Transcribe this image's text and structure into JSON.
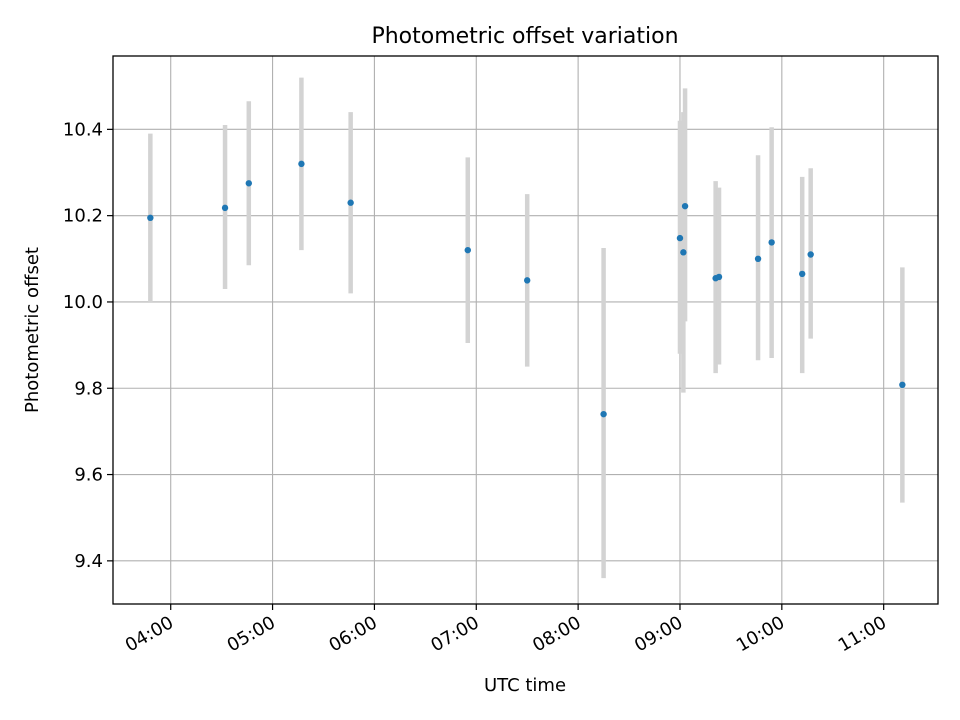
{
  "chart_data": {
    "type": "scatter",
    "title": "Photometric offset variation",
    "xlabel": "UTC time",
    "ylabel": "Photometric offset",
    "x_axis_type": "time",
    "xlim": [
      "03:26",
      "11:32"
    ],
    "ylim": [
      9.3,
      10.57
    ],
    "grid": true,
    "x_tick_labels": [
      "04:00",
      "05:00",
      "06:00",
      "07:00",
      "08:00",
      "09:00",
      "10:00",
      "11:00"
    ],
    "y_tick_labels": [
      "9.4",
      "9.6",
      "9.8",
      "10.0",
      "10.2",
      "10.4"
    ],
    "errorbar_color": "#d3d3d3",
    "point_color": "#1f77b4",
    "points": [
      {
        "x": "03:48",
        "y": 10.195,
        "ylow": 10.0,
        "yhigh": 10.39
      },
      {
        "x": "04:32",
        "y": 10.218,
        "ylow": 10.03,
        "yhigh": 10.41
      },
      {
        "x": "04:46",
        "y": 10.275,
        "ylow": 10.085,
        "yhigh": 10.465
      },
      {
        "x": "05:17",
        "y": 10.32,
        "ylow": 10.12,
        "yhigh": 10.52
      },
      {
        "x": "05:46",
        "y": 10.23,
        "ylow": 10.02,
        "yhigh": 10.44
      },
      {
        "x": "06:55",
        "y": 10.12,
        "ylow": 9.905,
        "yhigh": 10.335
      },
      {
        "x": "07:30",
        "y": 10.05,
        "ylow": 9.85,
        "yhigh": 10.25
      },
      {
        "x": "08:15",
        "y": 9.74,
        "ylow": 9.36,
        "yhigh": 10.125
      },
      {
        "x": "09:00",
        "y": 10.148,
        "ylow": 9.88,
        "yhigh": 10.42
      },
      {
        "x": "09:02",
        "y": 10.115,
        "ylow": 9.79,
        "yhigh": 10.44
      },
      {
        "x": "09:03",
        "y": 10.222,
        "ylow": 9.955,
        "yhigh": 10.495
      },
      {
        "x": "09:21",
        "y": 10.055,
        "ylow": 9.835,
        "yhigh": 10.28
      },
      {
        "x": "09:23",
        "y": 10.058,
        "ylow": 9.855,
        "yhigh": 10.265
      },
      {
        "x": "09:46",
        "y": 10.1,
        "ylow": 9.865,
        "yhigh": 10.34
      },
      {
        "x": "09:54",
        "y": 10.138,
        "ylow": 9.87,
        "yhigh": 10.405
      },
      {
        "x": "10:12",
        "y": 10.065,
        "ylow": 9.835,
        "yhigh": 10.29
      },
      {
        "x": "10:17",
        "y": 10.11,
        "ylow": 9.915,
        "yhigh": 10.31
      },
      {
        "x": "11:11",
        "y": 9.808,
        "ylow": 9.535,
        "yhigh": 10.08
      }
    ]
  }
}
